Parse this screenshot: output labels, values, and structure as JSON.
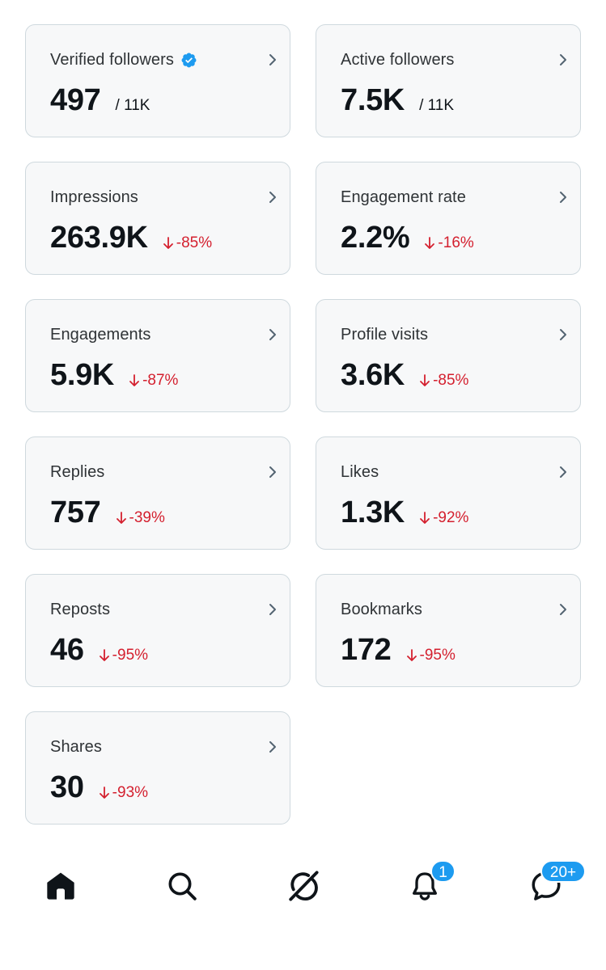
{
  "metrics": [
    {
      "title": "Verified followers",
      "value": "497",
      "sub": "/ 11K",
      "verified": true
    },
    {
      "title": "Active followers",
      "value": "7.5K",
      "sub": "/ 11K"
    },
    {
      "title": "Impressions",
      "value": "263.9K",
      "delta": "-85%"
    },
    {
      "title": "Engagement rate",
      "value": "2.2%",
      "delta": "-16%"
    },
    {
      "title": "Engagements",
      "value": "5.9K",
      "delta": "-87%"
    },
    {
      "title": "Profile visits",
      "value": "3.6K",
      "delta": "-85%"
    },
    {
      "title": "Replies",
      "value": "757",
      "delta": "-39%"
    },
    {
      "title": "Likes",
      "value": "1.3K",
      "delta": "-92%"
    },
    {
      "title": "Reposts",
      "value": "46",
      "delta": "-95%"
    },
    {
      "title": "Bookmarks",
      "value": "172",
      "delta": "-95%"
    },
    {
      "title": "Shares",
      "value": "30",
      "delta": "-93%"
    }
  ],
  "nav": {
    "notifications_badge": "1",
    "messages_badge": "20+"
  },
  "colors": {
    "accent": "#1d9bf0",
    "negative": "#d4202f",
    "card_bg": "#f7f8f9",
    "card_border": "#cfd9de"
  },
  "icons": [
    "chevron-right-icon",
    "verified-badge-icon",
    "arrow-down-icon",
    "home-icon",
    "search-icon",
    "grok-icon",
    "bell-icon",
    "messages-icon"
  ]
}
